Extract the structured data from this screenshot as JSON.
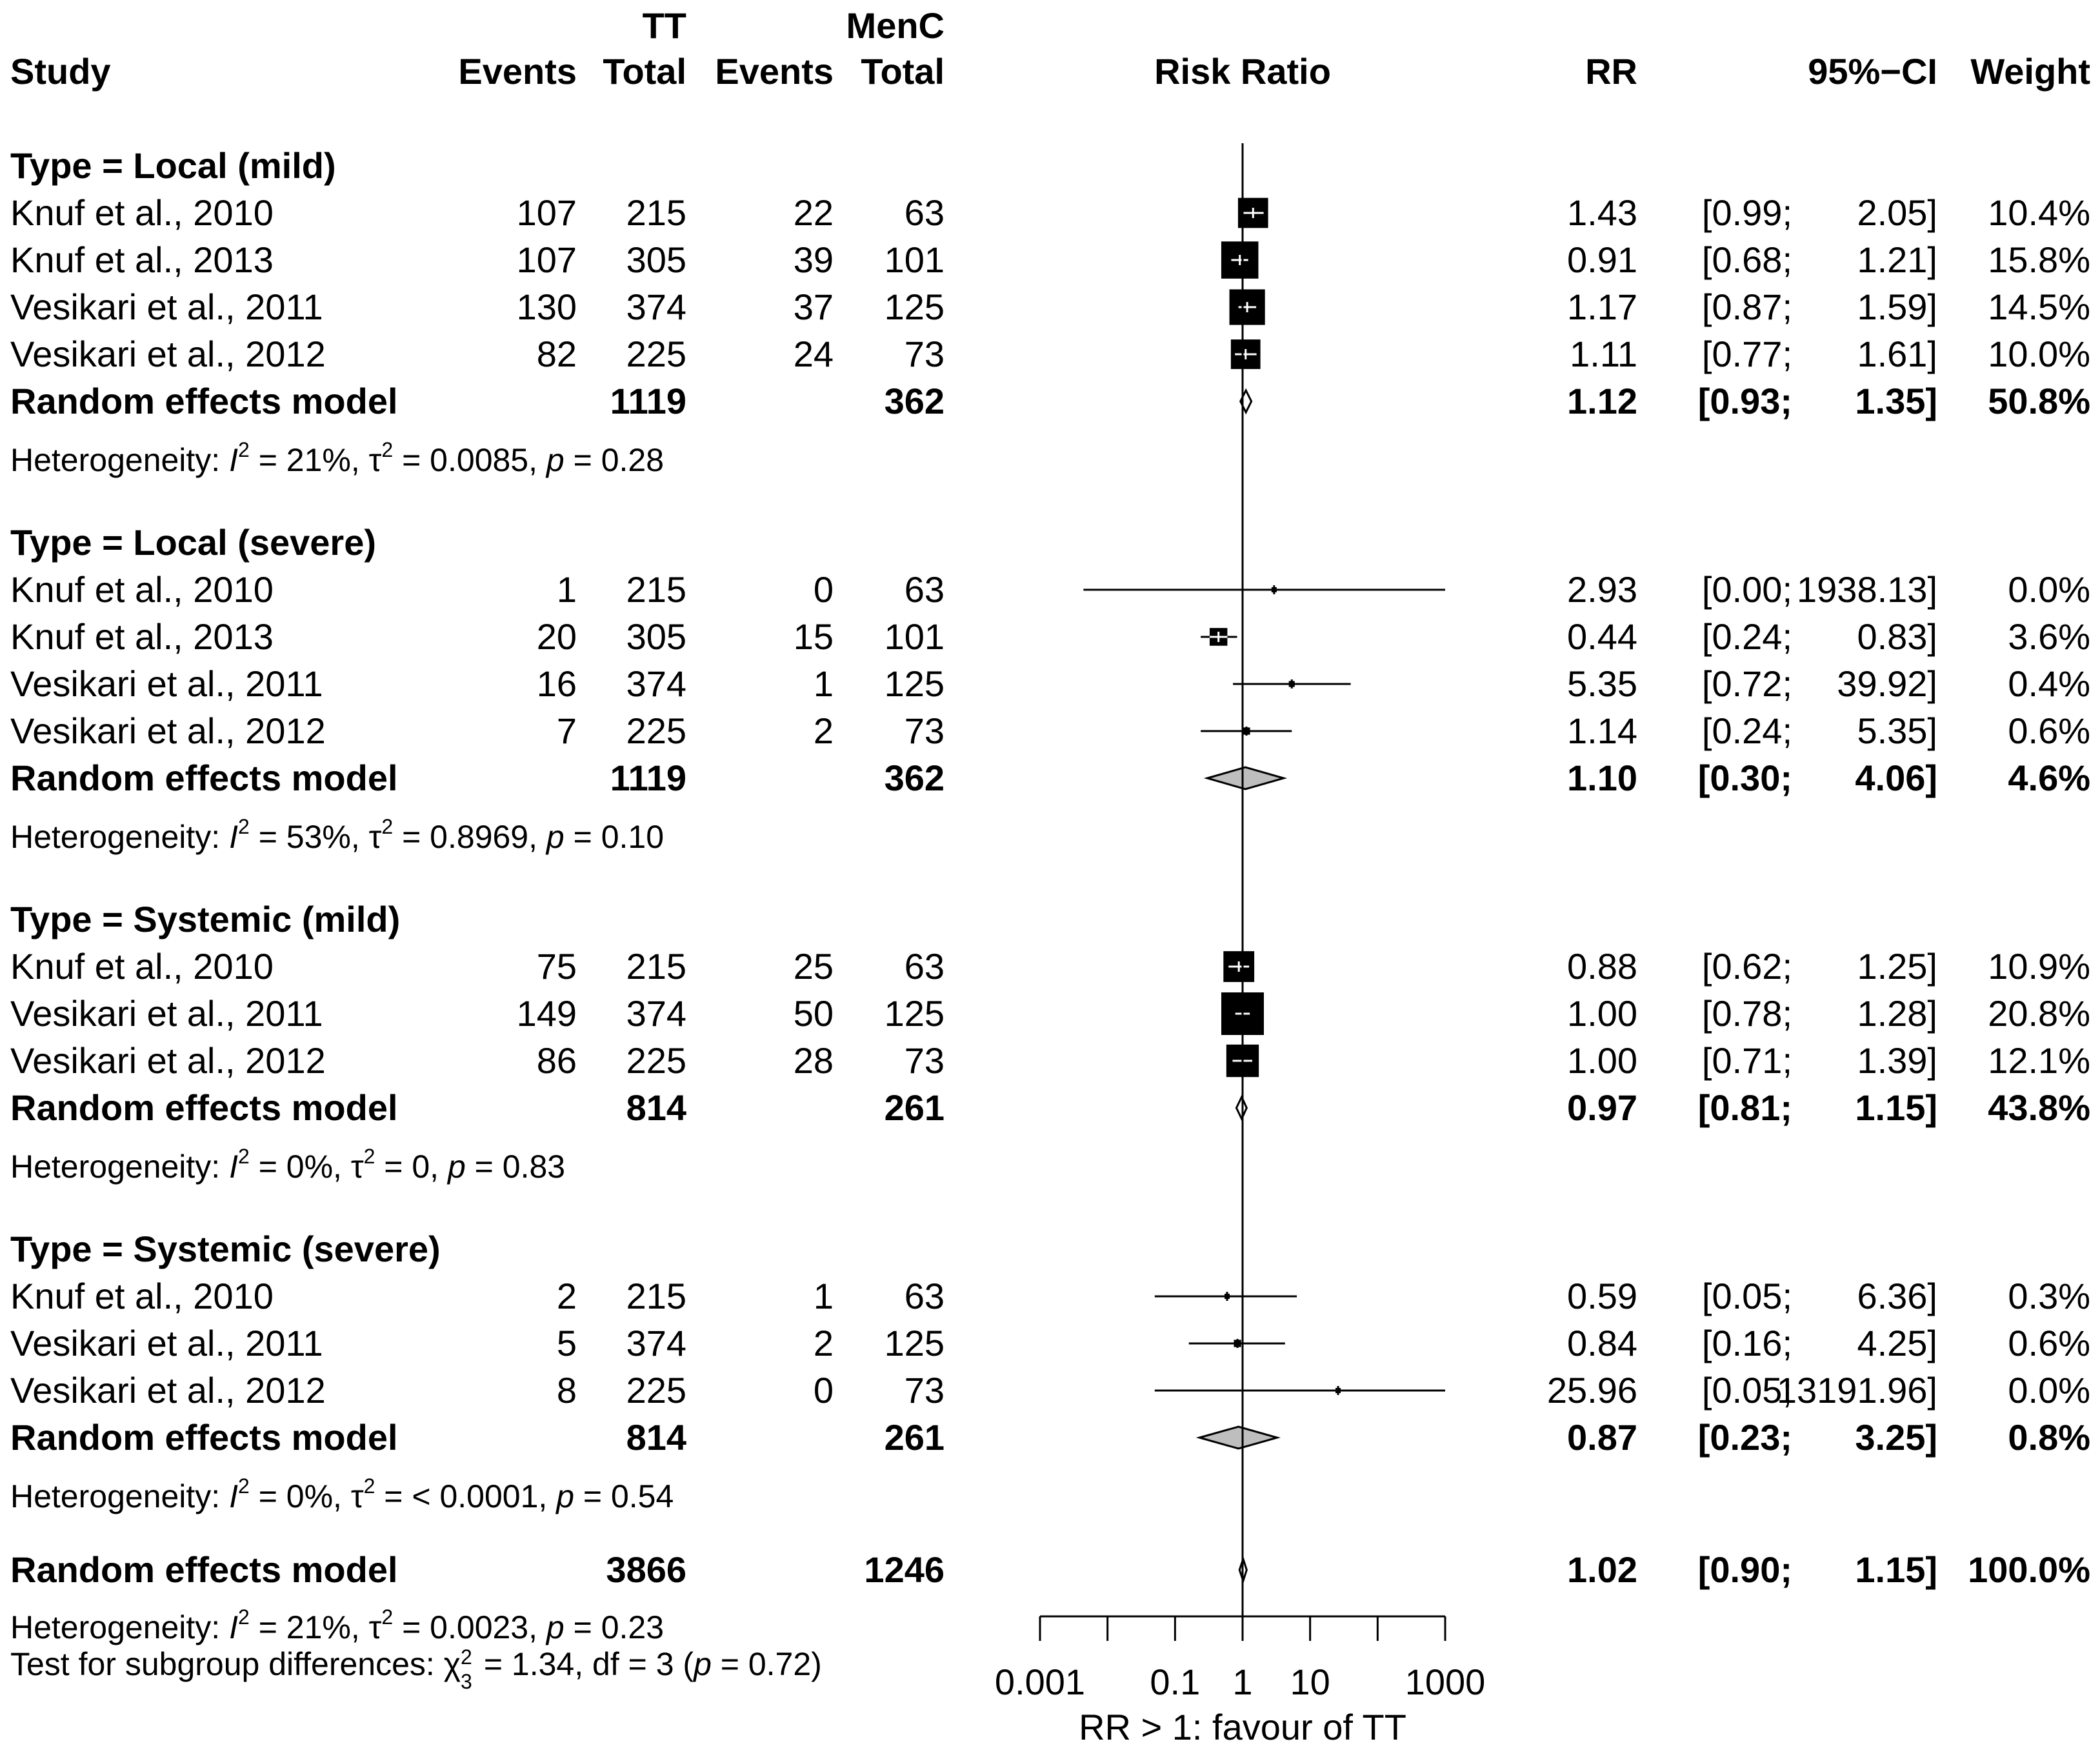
{
  "header": {
    "study": "Study",
    "group1": "TT",
    "group2": "MenC",
    "events": "Events",
    "total": "Total",
    "risk_ratio": "Risk Ratio",
    "rr": "RR",
    "ci": "95%−CI",
    "weight": "Weight"
  },
  "chart_data": {
    "type": "forest",
    "measure": "RR",
    "scale": "log10",
    "xlim": [
      0.001,
      1000
    ],
    "x_ticks": [
      0.001,
      0.1,
      1,
      10,
      1000
    ],
    "x_tick_labels": [
      "0.001",
      "0.1",
      "1",
      "10",
      "1000"
    ],
    "xlabel": "RR > 1: favour of TT",
    "reference_line": 1,
    "subgroups": [
      {
        "title": "Type = Local (mild)",
        "studies": [
          {
            "study": "Knuf et al., 2010",
            "e1": "107",
            "n1": "215",
            "e2": "22",
            "n2": "63",
            "rr_text": "1.43",
            "ci_lo_text": "[0.99;",
            "ci_hi_text": "2.05]",
            "weight_text": "10.4%",
            "rr": 1.43,
            "lo": 0.99,
            "hi": 2.05,
            "w": 10.4
          },
          {
            "study": "Knuf et al., 2013",
            "e1": "107",
            "n1": "305",
            "e2": "39",
            "n2": "101",
            "rr_text": "0.91",
            "ci_lo_text": "[0.68;",
            "ci_hi_text": "1.21]",
            "weight_text": "15.8%",
            "rr": 0.91,
            "lo": 0.68,
            "hi": 1.21,
            "w": 15.8
          },
          {
            "study": "Vesikari et al., 2011",
            "e1": "130",
            "n1": "374",
            "e2": "37",
            "n2": "125",
            "rr_text": "1.17",
            "ci_lo_text": "[0.87;",
            "ci_hi_text": "1.59]",
            "weight_text": "14.5%",
            "rr": 1.17,
            "lo": 0.87,
            "hi": 1.59,
            "w": 14.5
          },
          {
            "study": "Vesikari et al., 2012",
            "e1": "82",
            "n1": "225",
            "e2": "24",
            "n2": "73",
            "rr_text": "1.11",
            "ci_lo_text": "[0.77;",
            "ci_hi_text": "1.61]",
            "weight_text": "10.0%",
            "rr": 1.11,
            "lo": 0.77,
            "hi": 1.61,
            "w": 10.0
          }
        ],
        "model": {
          "label": "Random effects model",
          "n1": "1119",
          "n2": "362",
          "rr_text": "1.12",
          "ci_lo_text": "[0.93;",
          "ci_hi_text": "1.35]",
          "weight_text": "50.8%",
          "rr": 1.12,
          "lo": 0.93,
          "hi": 1.35
        },
        "het": {
          "prefix": "Heterogeneity: ",
          "I": "I",
          "sup1": "2",
          "i2": " = 21%, ",
          "tau": "τ",
          "sup2": "2",
          "tau2": " = 0.0085, ",
          "p": "p",
          "pval": " = 0.28"
        }
      },
      {
        "title": "Type = Local (severe)",
        "studies": [
          {
            "study": "Knuf et al., 2010",
            "e1": "1",
            "n1": "215",
            "e2": "0",
            "n2": "63",
            "rr_text": "2.93",
            "ci_lo_text": "[0.00;",
            "ci_hi_text": "1938.13]",
            "weight_text": "0.0%",
            "rr": 2.93,
            "lo": 0.0044,
            "hi": 1938.13,
            "w": 0.0
          },
          {
            "study": "Knuf et al., 2013",
            "e1": "20",
            "n1": "305",
            "e2": "15",
            "n2": "101",
            "rr_text": "0.44",
            "ci_lo_text": "[0.24;",
            "ci_hi_text": "0.83]",
            "weight_text": "3.6%",
            "rr": 0.44,
            "lo": 0.24,
            "hi": 0.83,
            "w": 3.6
          },
          {
            "study": "Vesikari et al., 2011",
            "e1": "16",
            "n1": "374",
            "e2": "1",
            "n2": "125",
            "rr_text": "5.35",
            "ci_lo_text": "[0.72;",
            "ci_hi_text": "39.92]",
            "weight_text": "0.4%",
            "rr": 5.35,
            "lo": 0.72,
            "hi": 39.92,
            "w": 0.4
          },
          {
            "study": "Vesikari et al., 2012",
            "e1": "7",
            "n1": "225",
            "e2": "2",
            "n2": "73",
            "rr_text": "1.14",
            "ci_lo_text": "[0.24;",
            "ci_hi_text": "5.35]",
            "weight_text": "0.6%",
            "rr": 1.14,
            "lo": 0.24,
            "hi": 5.35,
            "w": 0.6
          }
        ],
        "model": {
          "label": "Random effects model",
          "n1": "1119",
          "n2": "362",
          "rr_text": "1.10",
          "ci_lo_text": "[0.30;",
          "ci_hi_text": "4.06]",
          "weight_text": "4.6%",
          "rr": 1.1,
          "lo": 0.3,
          "hi": 4.06
        },
        "het": {
          "prefix": "Heterogeneity: ",
          "I": "I",
          "sup1": "2",
          "i2": " = 53%, ",
          "tau": "τ",
          "sup2": "2",
          "tau2": " = 0.8969, ",
          "p": "p",
          "pval": " = 0.10"
        }
      },
      {
        "title": "Type = Systemic (mild)",
        "studies": [
          {
            "study": "Knuf et al., 2010",
            "e1": "75",
            "n1": "215",
            "e2": "25",
            "n2": "63",
            "rr_text": "0.88",
            "ci_lo_text": "[0.62;",
            "ci_hi_text": "1.25]",
            "weight_text": "10.9%",
            "rr": 0.88,
            "lo": 0.62,
            "hi": 1.25,
            "w": 10.9
          },
          {
            "study": "Vesikari et al., 2011",
            "e1": "149",
            "n1": "374",
            "e2": "50",
            "n2": "125",
            "rr_text": "1.00",
            "ci_lo_text": "[0.78;",
            "ci_hi_text": "1.28]",
            "weight_text": "20.8%",
            "rr": 1.0,
            "lo": 0.78,
            "hi": 1.28,
            "w": 20.8
          },
          {
            "study": "Vesikari et al., 2012",
            "e1": "86",
            "n1": "225",
            "e2": "28",
            "n2": "73",
            "rr_text": "1.00",
            "ci_lo_text": "[0.71;",
            "ci_hi_text": "1.39]",
            "weight_text": "12.1%",
            "rr": 1.0,
            "lo": 0.71,
            "hi": 1.39,
            "w": 12.1
          }
        ],
        "model": {
          "label": "Random effects model",
          "n1": "814",
          "n2": "261",
          "rr_text": "0.97",
          "ci_lo_text": "[0.81;",
          "ci_hi_text": "1.15]",
          "weight_text": "43.8%",
          "rr": 0.97,
          "lo": 0.81,
          "hi": 1.15
        },
        "het": {
          "prefix": "Heterogeneity: ",
          "I": "I",
          "sup1": "2",
          "i2": " = 0%, ",
          "tau": "τ",
          "sup2": "2",
          "tau2": " = 0, ",
          "p": "p",
          "pval": " = 0.83"
        }
      },
      {
        "title": "Type = Systemic (severe)",
        "studies": [
          {
            "study": "Knuf et al., 2010",
            "e1": "2",
            "n1": "215",
            "e2": "1",
            "n2": "63",
            "rr_text": "0.59",
            "ci_lo_text": "[0.05;",
            "ci_hi_text": "6.36]",
            "weight_text": "0.3%",
            "rr": 0.59,
            "lo": 0.05,
            "hi": 6.36,
            "w": 0.3
          },
          {
            "study": "Vesikari et al., 2011",
            "e1": "5",
            "n1": "374",
            "e2": "2",
            "n2": "125",
            "rr_text": "0.84",
            "ci_lo_text": "[0.16;",
            "ci_hi_text": "4.25]",
            "weight_text": "0.6%",
            "rr": 0.84,
            "lo": 0.16,
            "hi": 4.25,
            "w": 0.6
          },
          {
            "study": "Vesikari et al., 2012",
            "e1": "8",
            "n1": "225",
            "e2": "0",
            "n2": "73",
            "rr_text": "25.96",
            "ci_lo_text": "[0.05;",
            "ci_hi_text": "13191.96]",
            "weight_text": "0.0%",
            "rr": 25.96,
            "lo": 0.05,
            "hi": 13191.96,
            "w": 0.0
          }
        ],
        "model": {
          "label": "Random effects model",
          "n1": "814",
          "n2": "261",
          "rr_text": "0.87",
          "ci_lo_text": "[0.23;",
          "ci_hi_text": "3.25]",
          "weight_text": "0.8%",
          "rr": 0.87,
          "lo": 0.23,
          "hi": 3.25
        },
        "het": {
          "prefix": "Heterogeneity: ",
          "I": "I",
          "sup1": "2",
          "i2": " = 0%, ",
          "tau": "τ",
          "sup2": "2",
          "tau2": " = < 0.0001, ",
          "p": "p",
          "pval": " = 0.54"
        }
      }
    ],
    "overall": {
      "model": {
        "label": "Random effects model",
        "n1": "3866",
        "n2": "1246",
        "rr_text": "1.02",
        "ci_lo_text": "[0.90;",
        "ci_hi_text": "1.15]",
        "weight_text": "100.0%",
        "rr": 1.02,
        "lo": 0.9,
        "hi": 1.15
      },
      "het": {
        "prefix": "Heterogeneity: ",
        "I": "I",
        "sup1": "2",
        "i2": " = 21%, ",
        "tau": "τ",
        "sup2": "2",
        "tau2": " = 0.0023, ",
        "p": "p",
        "pval": " = 0.23"
      },
      "subgroup_test": {
        "prefix": "Test for subgroup differences: ",
        "chi": "χ",
        "sup": "2",
        "sub": "3",
        "mid": " = 1.34, df = 3 (",
        "p": "p",
        "pval": " = 0.72)"
      }
    }
  }
}
